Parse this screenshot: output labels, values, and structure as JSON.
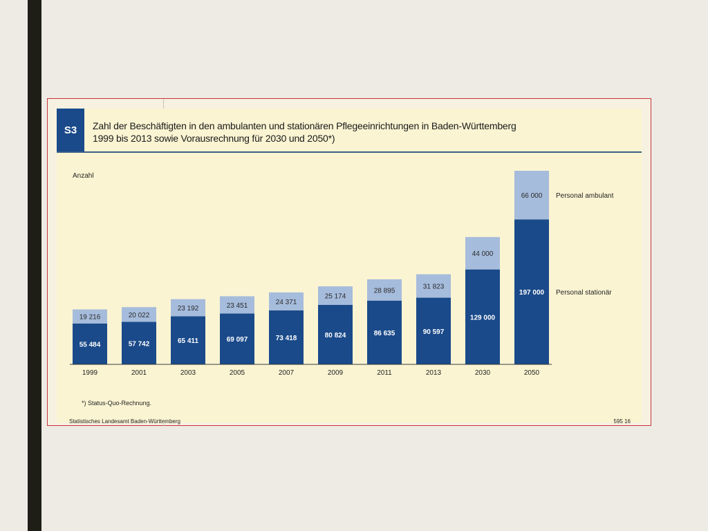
{
  "page": {
    "tag": "S3",
    "title_line1": "Zahl der Beschäftigten in den ambulanten und stationären Pflegeeinrichtungen in Baden-Württemberg",
    "title_line2": "1999 bis 2013 sowie Vorausrechnung für 2030 und 2050*)",
    "footnote": "*) Status-Quo-Rechnung.",
    "source": "Statistisches Landesamt Baden-Württemberg",
    "code": "595 16"
  },
  "colors": {
    "stationaer": "#1a4a8a",
    "ambulant": "#a6bcdc",
    "label_dark": "#2a2a2a",
    "label_light": "#ffffff"
  },
  "chart_data": {
    "type": "bar",
    "stacked": true,
    "categories": [
      "1999",
      "2001",
      "2003",
      "2005",
      "2007",
      "2009",
      "2011",
      "2013",
      "2030",
      "2050"
    ],
    "series": [
      {
        "name": "Personal stationär",
        "values": [
          55484,
          57742,
          65411,
          69097,
          73418,
          80824,
          86635,
          90597,
          129000,
          197000
        ],
        "labels": [
          "55 484",
          "57 742",
          "65 411",
          "69 097",
          "73 418",
          "80 824",
          "86 635",
          "90 597",
          "129 000",
          "197 000"
        ]
      },
      {
        "name": "Personal ambulant",
        "values": [
          19216,
          20022,
          23192,
          23451,
          24371,
          25174,
          28895,
          31823,
          44000,
          66000
        ],
        "labels": [
          "19 216",
          "20 022",
          "23 192",
          "23 451",
          "24 371",
          "25 174",
          "28 895",
          "31 823",
          "44 000",
          "66 000"
        ]
      }
    ],
    "ylabel": "Anzahl",
    "grid": false,
    "legend": "right"
  }
}
